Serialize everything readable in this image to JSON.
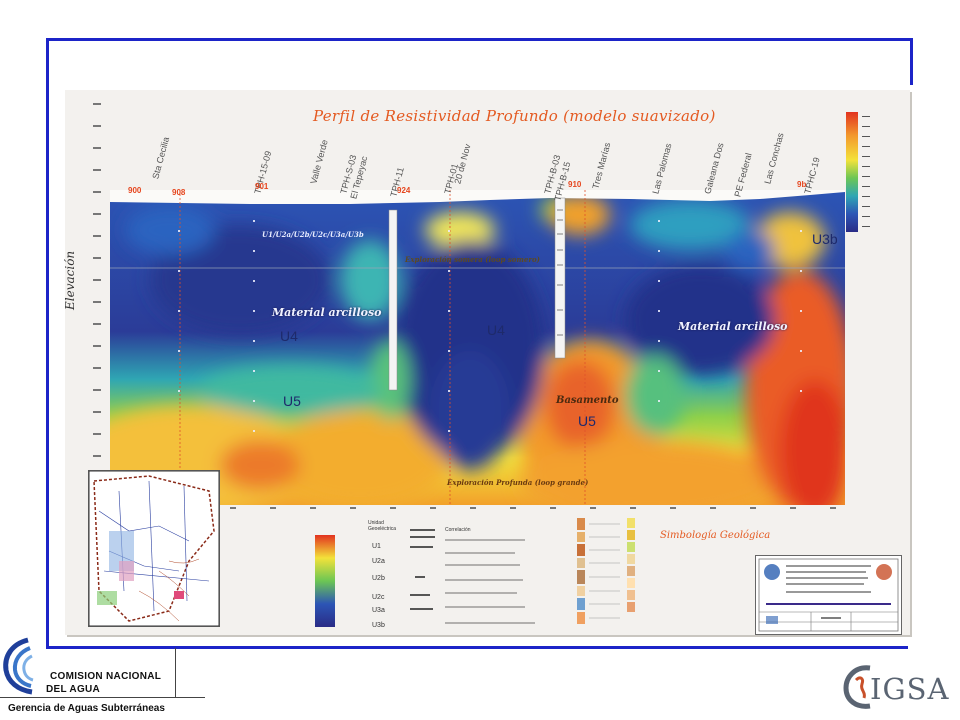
{
  "section": {
    "title": "Perfil  de Resistividad Profundo (modelo suavizado)",
    "y_axis_label": "Elevación"
  },
  "wells": [
    {
      "name": "Sta Cecilia"
    },
    {
      "name": "TPH-15-09"
    },
    {
      "name": "Valle Verde"
    },
    {
      "name": "TPH-S-03"
    },
    {
      "name": "El Tepeyac"
    },
    {
      "name": "TPH-11"
    },
    {
      "name": "20 de Nov"
    },
    {
      "name": "TPH-01"
    },
    {
      "name": "TPH-B-03"
    },
    {
      "name": "TPH-B-15"
    },
    {
      "name": "Tres Marías"
    },
    {
      "name": "Las Palomas"
    },
    {
      "name": "Galeana Dos"
    },
    {
      "name": "PE Federal"
    },
    {
      "name": "Las Conchas"
    },
    {
      "name": "TPHC-19"
    }
  ],
  "well_tops": [
    "900",
    "908",
    "901",
    "924",
    "910",
    "9b"
  ],
  "annotations": {
    "unit_group": "U1/U2a/U2b/U2c/U3a/U3b",
    "material_1": "Material arcilloso",
    "material_2": "Material arcilloso",
    "basement": "Basamento",
    "shallow_exploration": "Exploración somera (loop somero)",
    "deep_exploration": "Exploración Profunda (loop grande)"
  },
  "units": {
    "u3b": "U3b",
    "u4_left": "U4",
    "u4_center": "U4",
    "u5_left": "U5",
    "u5_right": "U5"
  },
  "legend": {
    "col_unit_header": "Unidad Geoeléctrica",
    "col_corr_header": "Correlación",
    "rows": [
      "U1",
      "U2a",
      "U2b",
      "U2c",
      "U3a",
      "U3b"
    ],
    "geo_title": "Simbología Geológica"
  },
  "colors": {
    "frame_border": "#1c24c8",
    "title": "#e45a21",
    "high_resistivity": "#e2331f",
    "low_resistivity": "#2a3f9a"
  },
  "footer": {
    "org_line1": "COMISION NACIONAL",
    "org_line2": "DEL  AGUA",
    "department": "Gerencia de Aguas Subterráneas",
    "partner_logo_text": "IGSA"
  }
}
